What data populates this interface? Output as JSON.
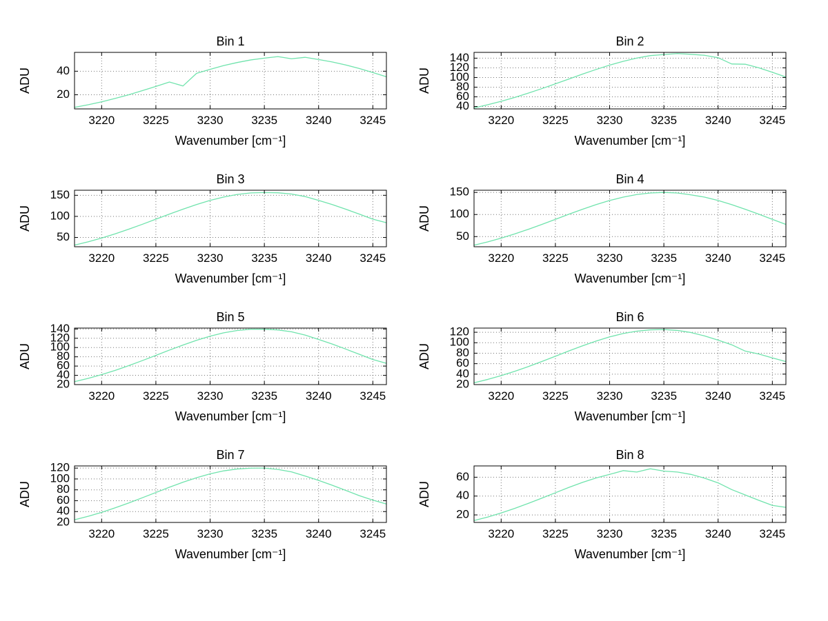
{
  "figure": {
    "background": "#ffffff",
    "line_color": "#6fe3ac",
    "grid_color": "#000000",
    "text_color": "#000000"
  },
  "chart_data": [
    {
      "type": "line",
      "title": "Bin 1",
      "xlabel": "Wavenumber [cm⁻¹]",
      "ylabel": "ADU",
      "xlim": [
        3217.5,
        3246.25
      ],
      "ylim": [
        8,
        56
      ],
      "xticks": [
        3220,
        3225,
        3230,
        3235,
        3240,
        3245
      ],
      "yticks": [
        20,
        40
      ],
      "grid": true,
      "x": [
        3217.5,
        3218.75,
        3220,
        3221.25,
        3222.5,
        3223.75,
        3225,
        3226.25,
        3227.5,
        3228.75,
        3230,
        3231.25,
        3232.5,
        3233.75,
        3235,
        3236.25,
        3237.5,
        3238.75,
        3240,
        3241.25,
        3242.5,
        3243.75,
        3245,
        3246.25
      ],
      "y": [
        9.3,
        11.5,
        14,
        16.9,
        20,
        23.5,
        27.1,
        30.8,
        27.5,
        38.2,
        41.6,
        44.8,
        47.4,
        49.6,
        51.1,
        52.4,
        50.6,
        51.8,
        49.9,
        47.9,
        45.3,
        42.3,
        38.9,
        35.3
      ]
    },
    {
      "type": "line",
      "title": "Bin 2",
      "xlabel": "Wavenumber [cm⁻¹]",
      "ylabel": "ADU",
      "xlim": [
        3217.5,
        3246.25
      ],
      "ylim": [
        35,
        152
      ],
      "xticks": [
        3220,
        3225,
        3230,
        3235,
        3240,
        3245
      ],
      "yticks": [
        40,
        60,
        80,
        100,
        120,
        140
      ],
      "grid": true,
      "x": [
        3217.5,
        3218.75,
        3220,
        3221.25,
        3222.5,
        3223.75,
        3225,
        3226.25,
        3227.5,
        3228.75,
        3230,
        3231.25,
        3232.5,
        3233.75,
        3235,
        3236.25,
        3237.5,
        3238.75,
        3240,
        3241.25,
        3242.5,
        3243.75,
        3245,
        3246.25
      ],
      "y": [
        37,
        43.5,
        50.7,
        58.8,
        67.6,
        77,
        86.9,
        96.9,
        107,
        116.6,
        125.6,
        133.5,
        140.2,
        145.3,
        147.5,
        149.5,
        148,
        146,
        141,
        128,
        127.5,
        120,
        110.8,
        101
      ]
    },
    {
      "type": "line",
      "title": "Bin 3",
      "xlabel": "Wavenumber [cm⁻¹]",
      "ylabel": "ADU",
      "xlim": [
        3217.5,
        3246.25
      ],
      "ylim": [
        28,
        162
      ],
      "xticks": [
        3220,
        3225,
        3230,
        3235,
        3240,
        3245
      ],
      "yticks": [
        50,
        100,
        150
      ],
      "grid": true,
      "x": [
        3217.5,
        3218.75,
        3220,
        3221.25,
        3222.5,
        3223.75,
        3225,
        3226.25,
        3227.5,
        3228.75,
        3230,
        3231.25,
        3232.5,
        3233.75,
        3235,
        3236.25,
        3237.5,
        3238.75,
        3240,
        3241.25,
        3242.5,
        3243.75,
        3245,
        3246.25
      ],
      "y": [
        31.9,
        39.7,
        48.6,
        58.7,
        69.6,
        81.2,
        93.3,
        105.4,
        117.1,
        128.1,
        137.9,
        145.9,
        152,
        155.7,
        156.5,
        156,
        153,
        147,
        137.9,
        128.1,
        117.1,
        105.4,
        93.3,
        85
      ]
    },
    {
      "type": "line",
      "title": "Bin 4",
      "xlabel": "Wavenumber [cm⁻¹]",
      "ylabel": "ADU",
      "xlim": [
        3217.5,
        3246.25
      ],
      "ylim": [
        27,
        155
      ],
      "xticks": [
        3220,
        3225,
        3230,
        3235,
        3240,
        3245
      ],
      "yticks": [
        50,
        100,
        150
      ],
      "grid": true,
      "x": [
        3217.5,
        3218.75,
        3220,
        3221.25,
        3222.5,
        3223.75,
        3225,
        3226.25,
        3227.5,
        3228.75,
        3230,
        3231.25,
        3232.5,
        3233.75,
        3235,
        3236.25,
        3237.5,
        3238.75,
        3240,
        3241.25,
        3242.5,
        3243.75,
        3245,
        3246.25
      ],
      "y": [
        30.5,
        37.9,
        46.5,
        56.1,
        66.5,
        77.6,
        89.1,
        100.7,
        111.9,
        122.4,
        131.7,
        139.4,
        145.2,
        148.8,
        150,
        148.8,
        144.5,
        139.4,
        131.7,
        122.4,
        111.9,
        100.7,
        89.1,
        77.6
      ]
    },
    {
      "type": "line",
      "title": "Bin 5",
      "xlabel": "Wavenumber [cm⁻¹]",
      "ylabel": "ADU",
      "xlim": [
        3217.5,
        3246.25
      ],
      "ylim": [
        20,
        142
      ],
      "xticks": [
        3220,
        3225,
        3230,
        3235,
        3240,
        3245
      ],
      "yticks": [
        20,
        40,
        60,
        80,
        100,
        120,
        140
      ],
      "grid": true,
      "x": [
        3217.5,
        3218.75,
        3220,
        3221.25,
        3222.5,
        3223.75,
        3225,
        3226.25,
        3227.5,
        3228.75,
        3230,
        3231.25,
        3232.5,
        3233.75,
        3235,
        3236.25,
        3237.5,
        3238.75,
        3240,
        3241.25,
        3242.5,
        3243.75,
        3245,
        3246.25
      ],
      "y": [
        26.3,
        33.4,
        41.5,
        50.7,
        60.9,
        71.8,
        83.1,
        94.5,
        105.4,
        115.6,
        124.5,
        131.7,
        136.8,
        139.5,
        139.5,
        138,
        134,
        127,
        117.5,
        107.6,
        96.7,
        85.4,
        74.1,
        66
      ]
    },
    {
      "type": "line",
      "title": "Bin 6",
      "xlabel": "Wavenumber [cm⁻¹]",
      "ylabel": "ADU",
      "xlim": [
        3217.5,
        3246.25
      ],
      "ylim": [
        20,
        128
      ],
      "xticks": [
        3220,
        3225,
        3230,
        3235,
        3240,
        3245
      ],
      "yticks": [
        20,
        40,
        60,
        80,
        100,
        120
      ],
      "grid": true,
      "x": [
        3217.5,
        3218.75,
        3220,
        3221.25,
        3222.5,
        3223.75,
        3225,
        3226.25,
        3227.5,
        3228.75,
        3230,
        3231.25,
        3232.5,
        3233.75,
        3235,
        3236.25,
        3237.5,
        3238.75,
        3240,
        3241.25,
        3242.5,
        3243.75,
        3245,
        3246.25
      ],
      "y": [
        23.5,
        29.8,
        37.1,
        45.3,
        54.4,
        64.1,
        74.2,
        84.4,
        94.1,
        103.2,
        111.2,
        117.6,
        122.1,
        124.6,
        125.2,
        123.5,
        119.5,
        113,
        104.9,
        96.1,
        84,
        78.5,
        71,
        64
      ]
    },
    {
      "type": "line",
      "title": "Bin 7",
      "xlabel": "Wavenumber [cm⁻¹]",
      "ylabel": "ADU",
      "xlim": [
        3217.5,
        3246.25
      ],
      "ylim": [
        20,
        124
      ],
      "xticks": [
        3220,
        3225,
        3230,
        3235,
        3240,
        3245
      ],
      "yticks": [
        20,
        40,
        60,
        80,
        100,
        120
      ],
      "grid": true,
      "x": [
        3217.5,
        3218.75,
        3220,
        3221.25,
        3222.5,
        3223.75,
        3225,
        3226.25,
        3227.5,
        3228.75,
        3230,
        3231.25,
        3232.5,
        3233.75,
        3235,
        3236.25,
        3237.5,
        3238.75,
        3240,
        3241.25,
        3242.5,
        3243.75,
        3245,
        3246.25
      ],
      "y": [
        24.9,
        31.3,
        38.6,
        46.9,
        55.8,
        65.4,
        75.1,
        84.8,
        94,
        102.3,
        109.4,
        114.9,
        118.4,
        119.9,
        120,
        117.5,
        113,
        105.4,
        97.4,
        88.5,
        79,
        69.3,
        61,
        54
      ]
    },
    {
      "type": "line",
      "title": "Bin 8",
      "xlabel": "Wavenumber [cm⁻¹]",
      "ylabel": "ADU",
      "xlim": [
        3217.5,
        3246.25
      ],
      "ylim": [
        12,
        72
      ],
      "xticks": [
        3220,
        3225,
        3230,
        3235,
        3240,
        3245
      ],
      "yticks": [
        20,
        40,
        60
      ],
      "grid": true,
      "x": [
        3217.5,
        3218.75,
        3220,
        3221.25,
        3222.5,
        3223.75,
        3225,
        3226.25,
        3227.5,
        3228.75,
        3230,
        3231.25,
        3232.5,
        3233.75,
        3235,
        3236.25,
        3237.5,
        3238.75,
        3240,
        3241.25,
        3242.5,
        3243.75,
        3245,
        3246.25
      ],
      "y": [
        14,
        17.7,
        22.1,
        26.9,
        32.2,
        37.8,
        43.5,
        49.2,
        54.5,
        59.2,
        63,
        67,
        65.5,
        69,
        66.5,
        65.5,
        63,
        59,
        54,
        46.9,
        41.2,
        35.5,
        30.1,
        28
      ]
    }
  ]
}
